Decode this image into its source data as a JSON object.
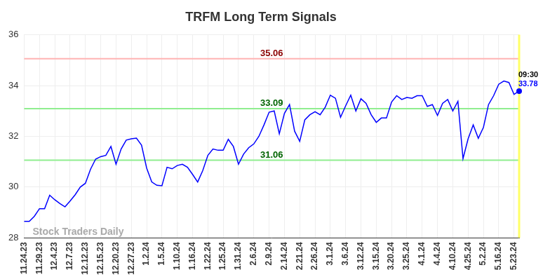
{
  "chart_data": {
    "type": "line",
    "title": "TRFM Long Term Signals",
    "categories": [
      "11.24.23",
      null,
      null,
      "11.29.23",
      null,
      null,
      "12.4.23",
      null,
      null,
      "12.7.23",
      null,
      null,
      "12.12.23",
      null,
      null,
      "12.15.23",
      null,
      null,
      "12.20.23",
      null,
      null,
      "12.27.23",
      null,
      null,
      "1.2.24",
      null,
      null,
      "1.5.24",
      null,
      null,
      "1.10.24",
      null,
      null,
      "1.16.24",
      null,
      null,
      "1.22.24",
      null,
      null,
      "1.25.24",
      null,
      null,
      "1.31.24",
      null,
      null,
      "2.6.24",
      null,
      null,
      "2.9.24",
      null,
      null,
      "2.14.24",
      null,
      null,
      "2.21.24",
      null,
      null,
      "2.26.24",
      null,
      null,
      "3.1.24",
      null,
      null,
      "3.6.24",
      null,
      null,
      "3.12.24",
      null,
      null,
      "3.15.24",
      null,
      null,
      "3.20.24",
      null,
      null,
      "3.25.24",
      null,
      null,
      "4.1.24",
      null,
      null,
      "4.4.24",
      null,
      null,
      "4.10.24",
      null,
      null,
      "4.25.24",
      null,
      null,
      "5.2.24",
      null,
      null,
      "5.16.24",
      null,
      null,
      "5.23.24",
      null
    ],
    "values": [
      28.65,
      28.65,
      28.85,
      29.15,
      29.15,
      29.68,
      29.5,
      29.35,
      29.22,
      29.45,
      29.7,
      30.0,
      30.15,
      30.7,
      31.1,
      31.2,
      31.25,
      31.6,
      30.9,
      31.5,
      31.85,
      31.9,
      31.93,
      31.65,
      30.75,
      30.2,
      30.07,
      30.05,
      30.78,
      30.72,
      30.85,
      30.9,
      30.78,
      30.5,
      30.2,
      30.65,
      31.25,
      31.5,
      31.45,
      31.45,
      31.88,
      31.6,
      30.9,
      31.3,
      31.55,
      31.7,
      32.0,
      32.45,
      32.95,
      33.0,
      32.1,
      32.9,
      33.25,
      32.2,
      31.8,
      32.65,
      32.85,
      32.97,
      32.85,
      33.15,
      33.62,
      33.5,
      32.75,
      33.2,
      33.62,
      33.0,
      33.48,
      33.3,
      32.85,
      32.55,
      32.72,
      32.72,
      33.35,
      33.6,
      33.45,
      33.53,
      33.5,
      33.6,
      33.6,
      33.18,
      33.25,
      32.82,
      33.3,
      33.45,
      33.0,
      33.38,
      31.12,
      31.9,
      32.45,
      31.92,
      32.35,
      33.25,
      33.6,
      34.05,
      34.18,
      34.12,
      33.65,
      33.78
    ],
    "color": "#0000ff",
    "ylim": [
      28,
      36
    ],
    "yticks": [
      28,
      30,
      32,
      34,
      36
    ],
    "grid": true,
    "annotations": [
      {
        "value": 35.06,
        "color": "#ffb3b3",
        "label_color": "#8b0000"
      },
      {
        "value": 33.09,
        "color": "#90ee90",
        "label_color": "#006400"
      },
      {
        "value": 31.06,
        "color": "#90ee90",
        "label_color": "#006400"
      }
    ],
    "last_point": {
      "time": "09:30",
      "value": 33.78
    },
    "watermark": "Stock Traders Daily"
  }
}
